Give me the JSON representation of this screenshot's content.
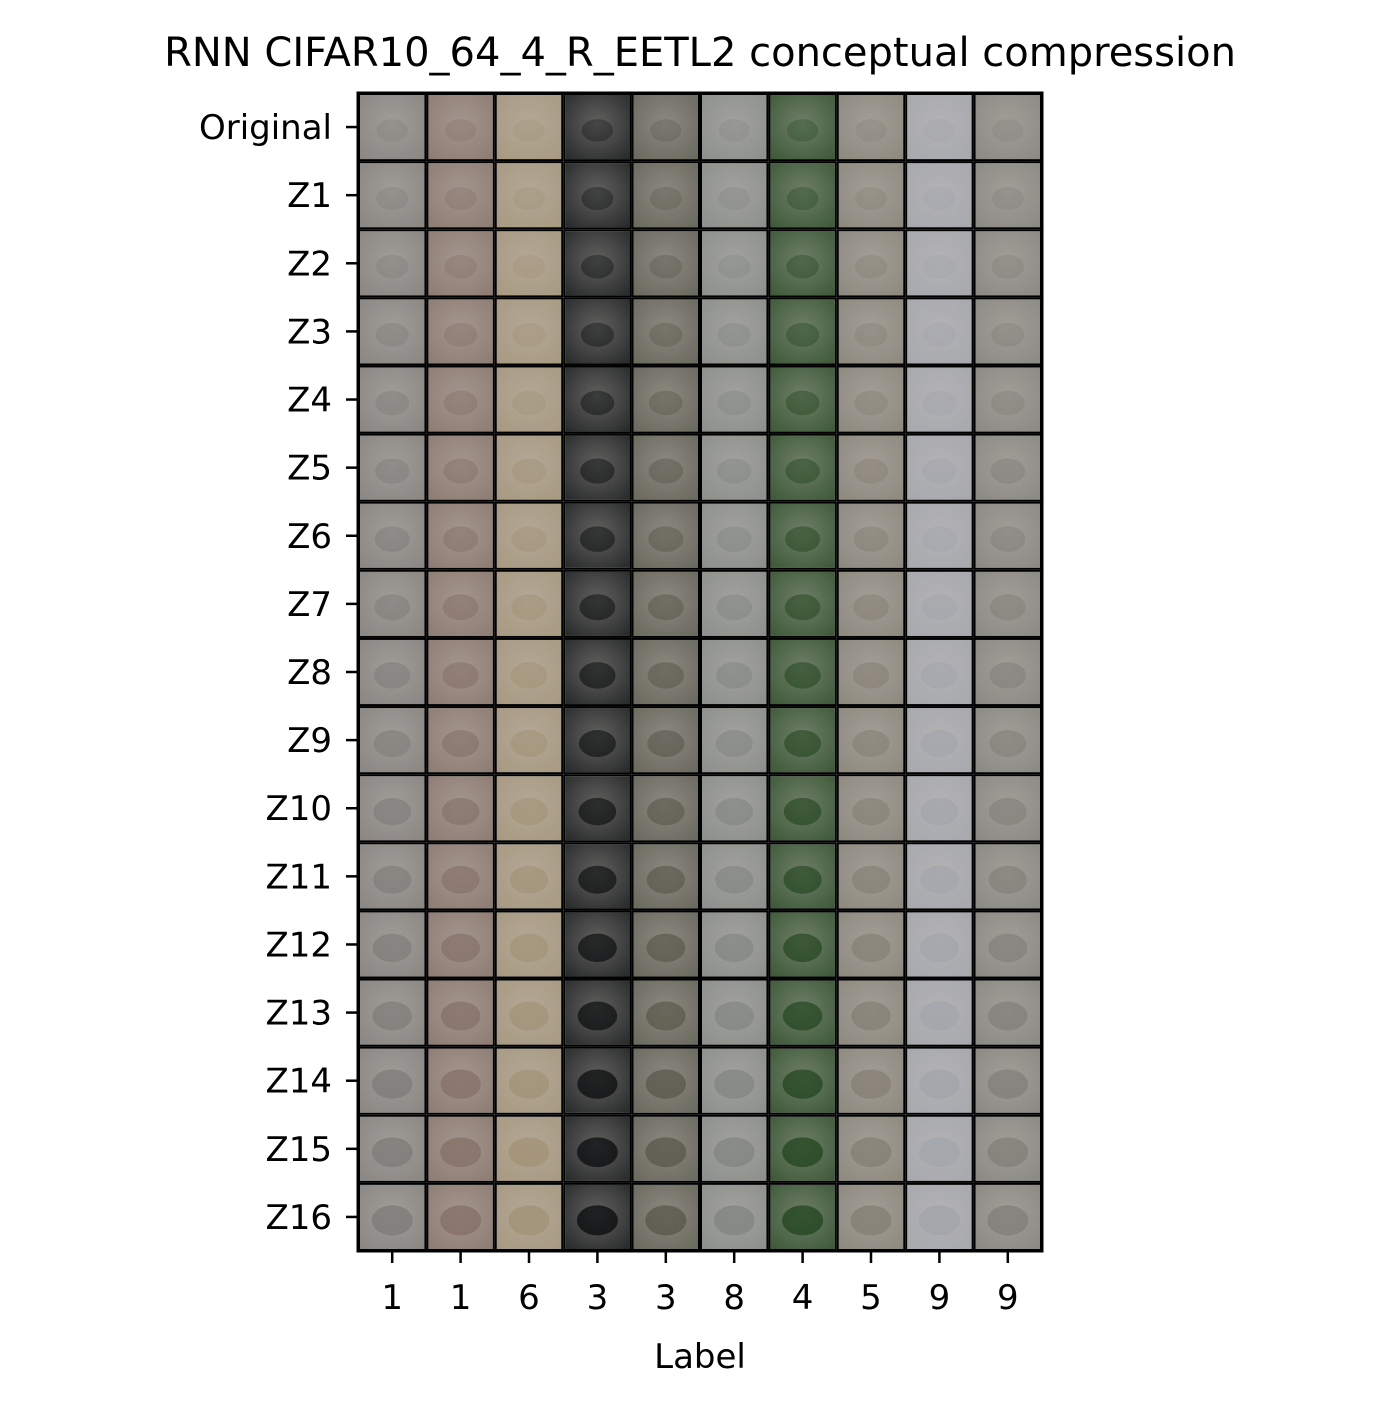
{
  "chart_data": {
    "type": "image_grid",
    "title": "RNN CIFAR10_64_4_R_EETL2 conceptual compression",
    "xlabel": "Label",
    "ylabel": "",
    "rows": [
      "Original",
      "Z1",
      "Z2",
      "Z3",
      "Z4",
      "Z5",
      "Z6",
      "Z7",
      "Z8",
      "Z9",
      "Z10",
      "Z11",
      "Z12",
      "Z13",
      "Z14",
      "Z15",
      "Z16"
    ],
    "columns": [
      "1",
      "1",
      "6",
      "3",
      "3",
      "8",
      "4",
      "5",
      "9",
      "9"
    ],
    "grid": false,
    "colors": {
      "cell_border": "#000000",
      "background": "#ffffff",
      "column_tints": [
        "#8a8784",
        "#8f7d74",
        "#a89a82",
        "#2a2c2c",
        "#6b6a5f",
        "#8d908c",
        "#3f5a3a",
        "#8f8a80",
        "#a7a9ae",
        "#8c8a84"
      ]
    }
  }
}
